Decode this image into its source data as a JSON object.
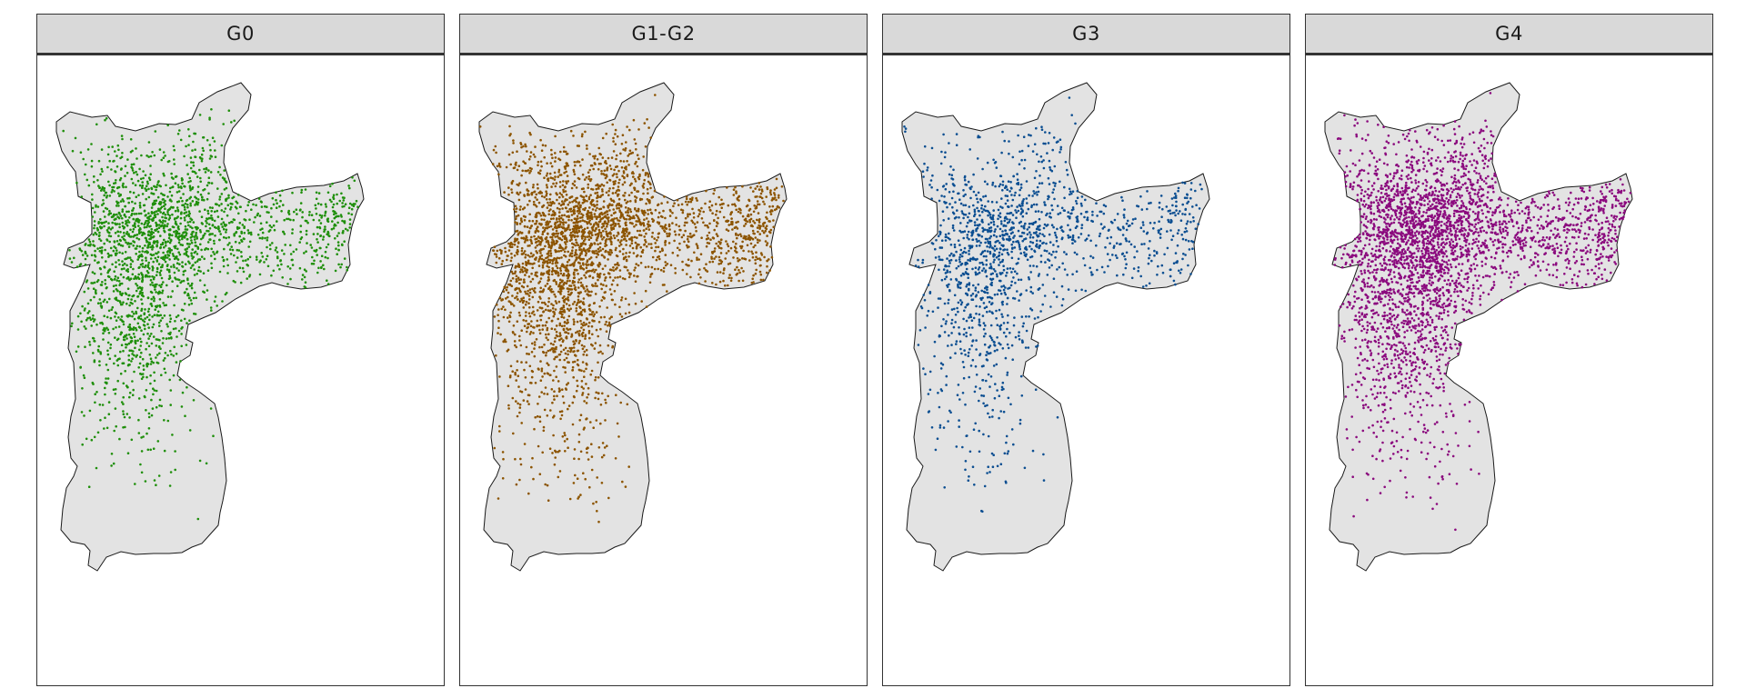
{
  "facets": [
    {
      "label": "G0",
      "color": "#1f8f0b"
    },
    {
      "label": "G1-G2",
      "color": "#8c5400"
    },
    {
      "label": "G3",
      "color": "#0b4e91"
    },
    {
      "label": "G4",
      "color": "#8b0a7e"
    }
  ],
  "map_fill": "#e3e3e3",
  "map_border": "#1a1a1a"
}
